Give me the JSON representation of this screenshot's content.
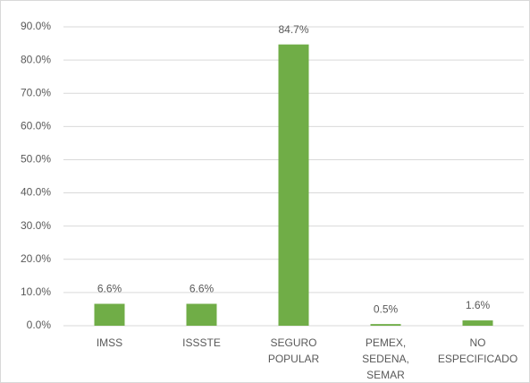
{
  "chart_data": {
    "type": "bar",
    "categories": [
      "IMSS",
      "ISSSTE",
      "SEGURO POPULAR",
      "PEMEX, SEDENA, SEMAR",
      "NO ESPECIFICADO"
    ],
    "values": [
      6.6,
      6.6,
      84.7,
      0.5,
      1.6
    ],
    "value_labels": [
      "6.6%",
      "6.6%",
      "84.7%",
      "0.5%",
      "1.6%"
    ],
    "color": "#70ad47",
    "ylim": [
      0,
      90
    ],
    "yticks": [
      {
        "value": 0,
        "label": "0.0%"
      },
      {
        "value": 10,
        "label": "10.0%"
      },
      {
        "value": 20,
        "label": "20.0%"
      },
      {
        "value": 30,
        "label": "30.0%"
      },
      {
        "value": 40,
        "label": "40.0%"
      },
      {
        "value": 50,
        "label": "50.0%"
      },
      {
        "value": 60,
        "label": "60.0%"
      },
      {
        "value": 70,
        "label": "70.0%"
      },
      {
        "value": 80,
        "label": "80.0%"
      },
      {
        "value": 90,
        "label": "90.0%"
      }
    ],
    "grid": true
  }
}
